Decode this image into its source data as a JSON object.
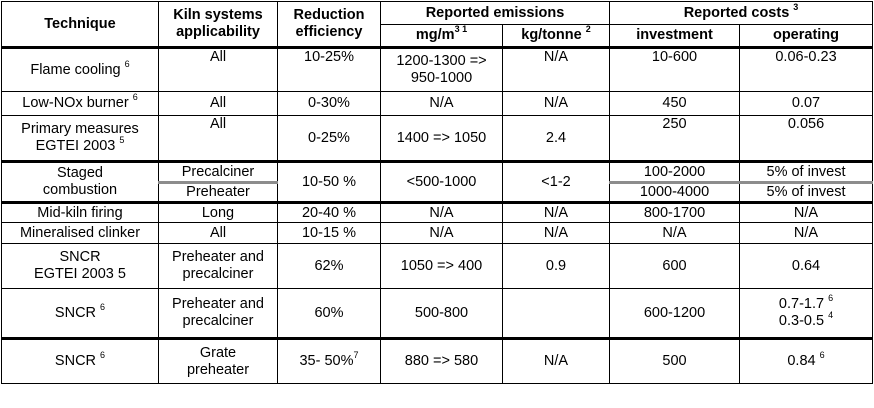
{
  "header": {
    "technique": "Technique",
    "kiln_line1": "Kiln systems",
    "kiln_line2": "applicability",
    "reduction_line1": "Reduction",
    "reduction_line2": "efficiency",
    "reported_emissions": "Reported emissions",
    "mg_m3": "mg/m",
    "mg_m3_sup": "3 1",
    "kg_tonne": "kg/tonne",
    "kg_tonne_sup": "2",
    "reported_costs": "Reported costs",
    "reported_costs_sup": "3",
    "investment": "investment",
    "operating": "operating"
  },
  "rows": {
    "flame": {
      "technique": "Flame cooling",
      "technique_sup": "6",
      "kiln": "All",
      "reduction": "10-25%",
      "mg_line1": "1200-1300 =>",
      "mg_line2": "950-1000",
      "kg": "N/A",
      "investment": "10-600",
      "operating": "0.06-0.23"
    },
    "lownox": {
      "technique": "Low-NOx burner",
      "technique_sup": "6",
      "kiln": "All",
      "reduction": "0-30%",
      "mg": "N/A",
      "kg": "N/A",
      "investment": "450",
      "operating": "0.07"
    },
    "primary": {
      "technique_line1": "Primary measures",
      "technique_line2": "EGTEI 2003",
      "technique_sup": "5",
      "kiln": "All",
      "reduction": "0-25%",
      "mg": "1400 => 1050",
      "kg": "2.4",
      "investment": "250",
      "operating": "0.056"
    },
    "staged": {
      "technique_line1": "Staged",
      "technique_line2": "combustion",
      "kiln_a": "Precalciner",
      "kiln_b": "Preheater",
      "reduction": "10-50 %",
      "mg": "<500-1000",
      "kg": "<1-2",
      "investment_a": "100-2000",
      "investment_b": "1000-4000",
      "operating_a": "5% of invest",
      "operating_b": "5% of invest"
    },
    "midkiln": {
      "technique": "Mid-kiln firing",
      "kiln": "Long",
      "reduction": "20-40 %",
      "mg": "N/A",
      "kg": "N/A",
      "investment": "800-1700",
      "operating": "N/A"
    },
    "mineral": {
      "technique": "Mineralised clinker",
      "kiln": "All",
      "reduction": "10-15 %",
      "mg": "N/A",
      "kg": "N/A",
      "investment": "N/A",
      "operating": "N/A"
    },
    "sncr1": {
      "technique_line1": "SNCR",
      "technique_line2": "EGTEI 2003 5",
      "kiln_line1": "Preheater and",
      "kiln_line2": "precalciner",
      "reduction": "62%",
      "mg": "1050 => 400",
      "kg": "0.9",
      "investment": "600",
      "operating": "0.64"
    },
    "sncr2": {
      "technique": "SNCR",
      "technique_sup": "6",
      "kiln_line1": "Preheater and",
      "kiln_line2": "precalciner",
      "reduction": "60%",
      "mg": "500-800",
      "investment": "600-1200",
      "operating_line1": "0.7-1.7",
      "operating_sup1": "6",
      "operating_line2": "0.3-0.5",
      "operating_sup2": "4"
    },
    "sncr3": {
      "technique": "SNCR",
      "technique_sup": "6",
      "kiln_line1": "Grate",
      "kiln_line2": "preheater",
      "reduction": "35- 50%",
      "reduction_sup": "7",
      "mg": "880 => 580",
      "kg": "N/A",
      "investment": "500",
      "operating": "0.84",
      "operating_sup": "6"
    }
  }
}
